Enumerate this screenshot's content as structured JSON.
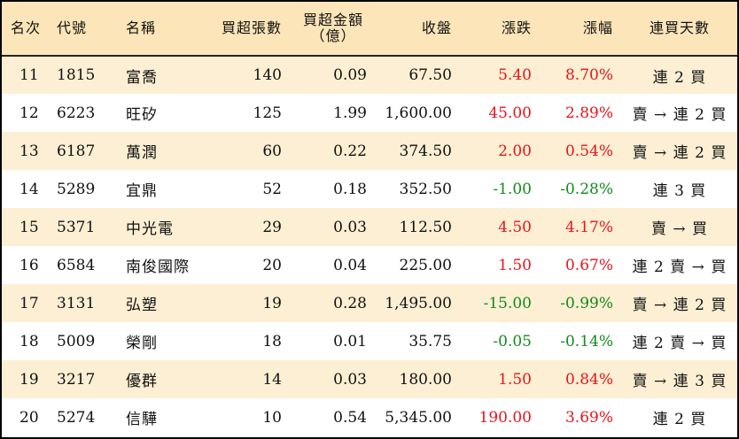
{
  "colors": {
    "header_bg": "#fce5b8",
    "row_alt_bg": "#fcefd3",
    "up": "#e8141c",
    "down": "#14881c"
  },
  "headers": {
    "rank": "名次",
    "code": "代號",
    "name": "名稱",
    "net_lots": "買超張數",
    "net_amount_line1": "買超金額",
    "net_amount_line2": "（億）",
    "close": "收盤",
    "change": "漲跌",
    "pct": "漲幅",
    "days": "連買天數"
  },
  "rows": [
    {
      "rank": "11",
      "code": "1815",
      "name": "富喬",
      "net_lots": "140",
      "net_amount": "0.09",
      "close": "67.50",
      "change": "5.40",
      "pct": "8.70%",
      "direction": "up",
      "days": "連 2 買"
    },
    {
      "rank": "12",
      "code": "6223",
      "name": "旺矽",
      "net_lots": "125",
      "net_amount": "1.99",
      "close": "1,600.00",
      "change": "45.00",
      "pct": "2.89%",
      "direction": "up",
      "days": "賣 → 連 2 買"
    },
    {
      "rank": "13",
      "code": "6187",
      "name": "萬潤",
      "net_lots": "60",
      "net_amount": "0.22",
      "close": "374.50",
      "change": "2.00",
      "pct": "0.54%",
      "direction": "up",
      "days": "賣 → 連 2 買"
    },
    {
      "rank": "14",
      "code": "5289",
      "name": "宜鼎",
      "net_lots": "52",
      "net_amount": "0.18",
      "close": "352.50",
      "change": "-1.00",
      "pct": "-0.28%",
      "direction": "down",
      "days": "連 3 買"
    },
    {
      "rank": "15",
      "code": "5371",
      "name": "中光電",
      "net_lots": "29",
      "net_amount": "0.03",
      "close": "112.50",
      "change": "4.50",
      "pct": "4.17%",
      "direction": "up",
      "days": "賣 → 買"
    },
    {
      "rank": "16",
      "code": "6584",
      "name": "南俊國際",
      "net_lots": "20",
      "net_amount": "0.04",
      "close": "225.00",
      "change": "1.50",
      "pct": "0.67%",
      "direction": "up",
      "days": "連 2 賣 → 買"
    },
    {
      "rank": "17",
      "code": "3131",
      "name": "弘塑",
      "net_lots": "19",
      "net_amount": "0.28",
      "close": "1,495.00",
      "change": "-15.00",
      "pct": "-0.99%",
      "direction": "down",
      "days": "賣 → 連 2 買"
    },
    {
      "rank": "18",
      "code": "5009",
      "name": "榮剛",
      "net_lots": "18",
      "net_amount": "0.01",
      "close": "35.75",
      "change": "-0.05",
      "pct": "-0.14%",
      "direction": "down",
      "days": "連 2 賣 → 買"
    },
    {
      "rank": "19",
      "code": "3217",
      "name": "優群",
      "net_lots": "14",
      "net_amount": "0.03",
      "close": "180.00",
      "change": "1.50",
      "pct": "0.84%",
      "direction": "up",
      "days": "賣 → 連 3 買"
    },
    {
      "rank": "20",
      "code": "5274",
      "name": "信驊",
      "net_lots": "10",
      "net_amount": "0.54",
      "close": "5,345.00",
      "change": "190.00",
      "pct": "3.69%",
      "direction": "up",
      "days": "連 2 買"
    }
  ]
}
